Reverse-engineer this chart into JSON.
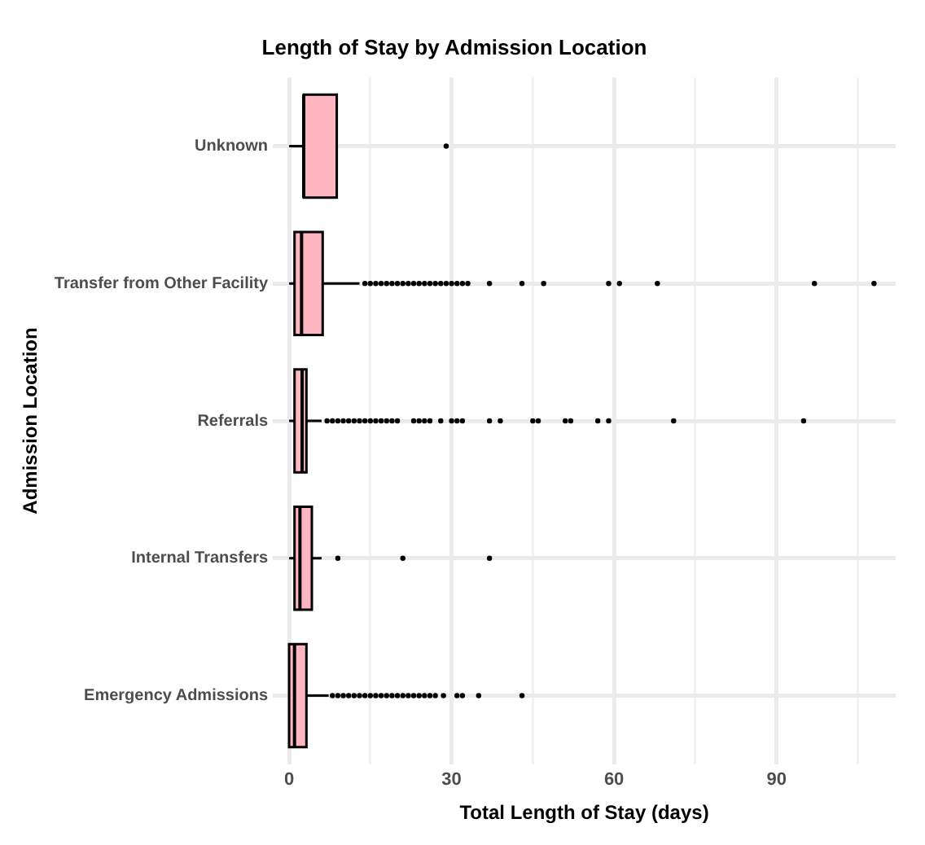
{
  "chart_data": {
    "type": "box",
    "title": "Length of Stay by Admission Location",
    "xlabel": "Total Length of Stay (days)",
    "ylabel": "Admission Location",
    "orientation": "horizontal",
    "categories": [
      "Unknown",
      "Transfer from Other Facility",
      "Referrals",
      "Internal Transfers",
      "Emergency Admissions"
    ],
    "color": "#ffb6c1",
    "boxes": [
      {
        "low": 0,
        "q1": 2.7,
        "median": 2.7,
        "q3": 8.8,
        "high": 8.8,
        "outliers": [
          29
        ]
      },
      {
        "low": 0,
        "q1": 1,
        "median": 2.3,
        "q3": 6.2,
        "high": 13,
        "outliers": [
          14,
          15,
          16,
          17,
          18,
          19,
          20,
          21,
          22,
          23,
          24,
          25,
          26,
          27,
          28,
          29,
          30,
          31,
          32,
          33,
          37,
          43,
          47,
          59,
          61,
          68,
          97,
          108
        ]
      },
      {
        "low": 0,
        "q1": 1,
        "median": 2.4,
        "q3": 3.2,
        "high": 6,
        "outliers": [
          7,
          8,
          9,
          10,
          11,
          12,
          13,
          14,
          15,
          16,
          17,
          18,
          19,
          20,
          23,
          24,
          25,
          26,
          28,
          30,
          31,
          32,
          37,
          39,
          45,
          46,
          51,
          52,
          57,
          59,
          71,
          95
        ]
      },
      {
        "low": 0,
        "q1": 1,
        "median": 2,
        "q3": 4.2,
        "high": 6,
        "outliers": [
          9,
          21,
          37
        ]
      },
      {
        "low": 0,
        "q1": 0,
        "median": 1,
        "q3": 3.2,
        "high": 7.3,
        "outliers": [
          8,
          9,
          10,
          11,
          12,
          13,
          14,
          15,
          16,
          17,
          18,
          19,
          20,
          21,
          22,
          23,
          24,
          25,
          26,
          27,
          28.5,
          31,
          32,
          35,
          43
        ]
      }
    ],
    "xlim": [
      -3,
      112
    ],
    "xticks": [
      0,
      {
        "value": 15,
        "label": null
      },
      30,
      {
        "value": 45,
        "label": null
      },
      60,
      {
        "value": 75,
        "label": null
      },
      90,
      {
        "value": 105,
        "label": null
      }
    ],
    "grid": true
  }
}
